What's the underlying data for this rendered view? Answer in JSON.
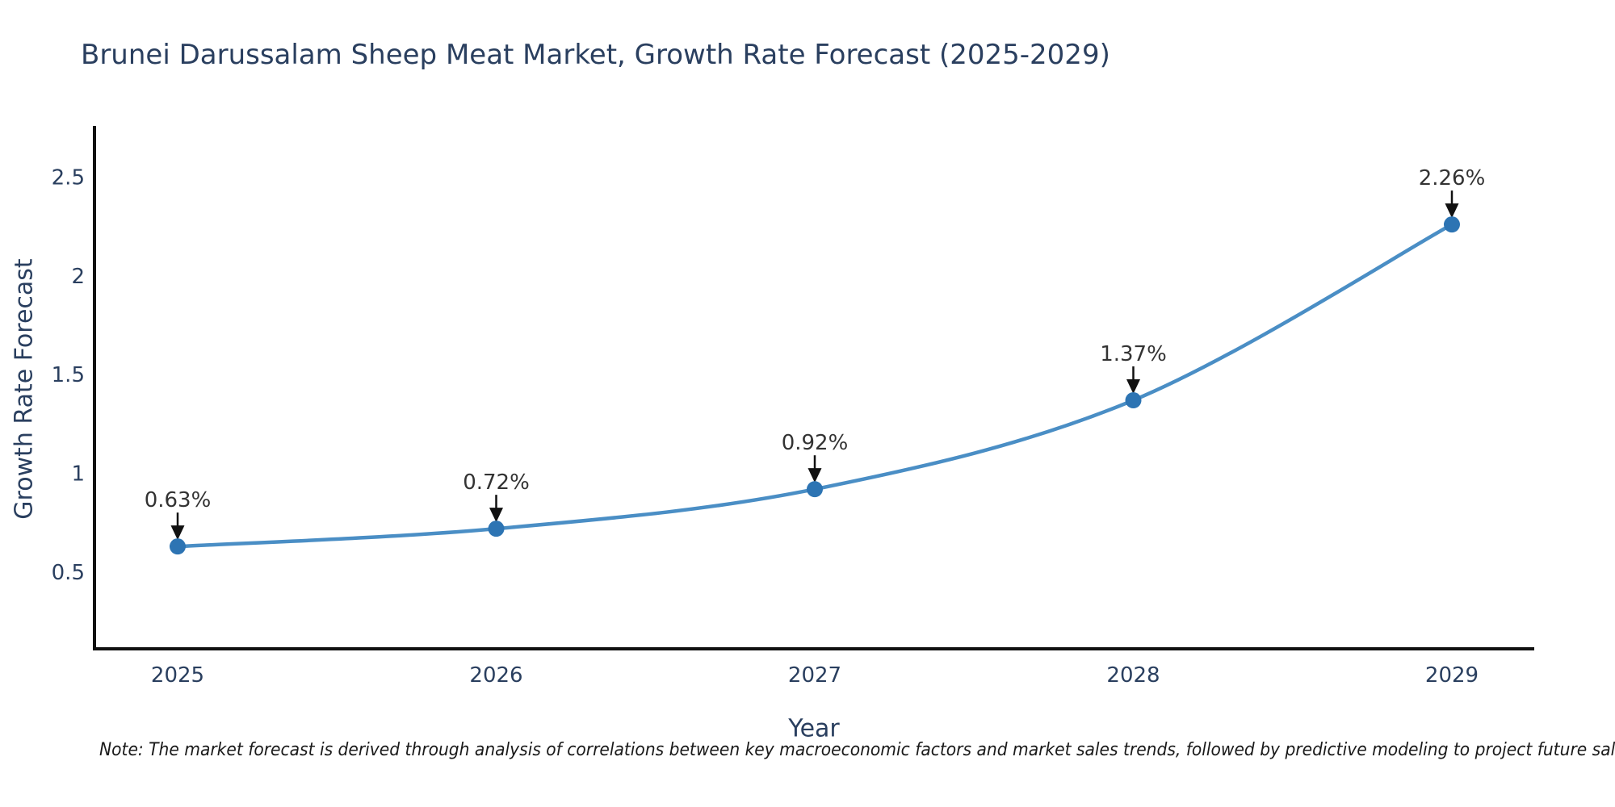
{
  "chart_data": {
    "type": "line",
    "title": "Brunei Darussalam Sheep Meat Market, Growth Rate Forecast (2025-2029)",
    "xlabel": "Year",
    "ylabel": "Growth Rate Forecast",
    "categories": [
      2025,
      2026,
      2027,
      2028,
      2029
    ],
    "series": [
      {
        "name": "Growth Rate Forecast",
        "values": [
          0.63,
          0.72,
          0.92,
          1.37,
          2.26
        ]
      }
    ],
    "point_labels": [
      "0.63%",
      "0.72%",
      "0.92%",
      "1.37%",
      "2.26%"
    ],
    "y_ticks": [
      0.5,
      1,
      1.5,
      2,
      2.5
    ],
    "ylim": [
      0.1,
      2.75
    ],
    "grid": false,
    "legend": false,
    "line_style": "smooth-spline",
    "marker_style": "circle",
    "annotation_arrows": "down",
    "note": "Note: The market forecast is derived through analysis of correlations between key macroeconomic factors and market sales trends, followed by predictive modeling to project future sales"
  },
  "colors": {
    "background": "#ffffff",
    "line": "#4a8ec5",
    "marker": "#2d74b3",
    "axis": "#111111",
    "arrow": "#111111",
    "text_primary": "#2a3f5f",
    "annotation_text": "#333333",
    "note_text": "#1a1a1a"
  }
}
